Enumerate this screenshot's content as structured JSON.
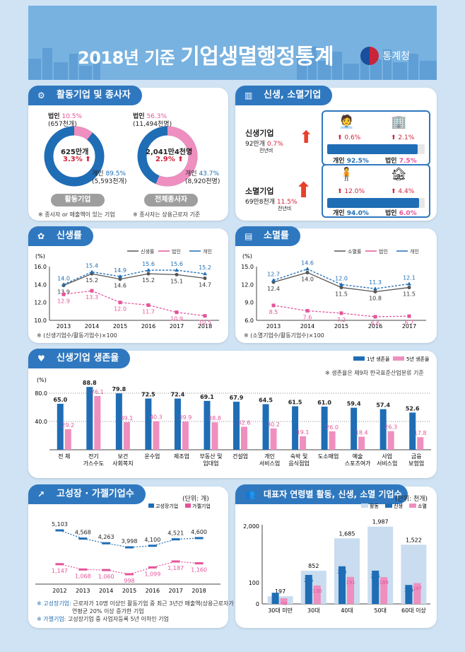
{
  "header": {
    "title_prefix": "2018년 기준",
    "title_main": "기업생멸행정통계",
    "agency": "통계청"
  },
  "active": {
    "title": "활동기업 및 종사자",
    "donut1": {
      "corp_label": "법인",
      "corp_pct": "10.5%",
      "corp_count": "(657천개)",
      "center_value": "625만개",
      "center_change": "3.3%",
      "indiv_label": "개인",
      "indiv_pct": "89.5%",
      "indiv_count": "(5,593천개)",
      "pill": "활동기업",
      "note": "※ 종사자 or 매출액이 있는 기업",
      "corp_share": 0.105
    },
    "donut2": {
      "corp_label": "법인",
      "corp_pct": "56.3%",
      "corp_count": "(11,494천명)",
      "center_value": "2,041만4천명",
      "center_change": "2.9%",
      "indiv_label": "개인",
      "indiv_pct": "43.7%",
      "indiv_count": "(8,920천명)",
      "pill": "전체종사자",
      "note": "※ 종사자는 상용근로자 기준",
      "corp_share": 0.563
    }
  },
  "newclose": {
    "title": "신생, 소멸기업",
    "new": {
      "label": "신생기업",
      "value": "92만개",
      "change": "0.7%",
      "sub": "전년비",
      "indiv_change": "0.6%",
      "corp_change": "2.1%",
      "indiv_label": "개인",
      "indiv_share": "92.5%",
      "corp_label": "법인",
      "corp_share": "7.5%",
      "indiv_frac": 0.925
    },
    "closed": {
      "label": "소멸기업",
      "value": "69만8천개",
      "change": "11.5%",
      "sub": "전년비",
      "indiv_change": "12.0%",
      "corp_change": "4.4%",
      "indiv_label": "개인",
      "indiv_share": "94.0%",
      "corp_label": "법인",
      "corp_share": "6.0%",
      "indiv_frac": 0.94
    }
  },
  "birth_rate": {
    "title": "신생률",
    "unit": "(%)",
    "note": "※ (신생기업수/활동기업수)×100",
    "chart_data": {
      "type": "line",
      "x": [
        "2013",
        "2014",
        "2015",
        "2016",
        "2017",
        "2018"
      ],
      "ylim": [
        10.0,
        16.0
      ],
      "yticks": [
        "10.0",
        "12.0",
        "14.0",
        "16.0"
      ],
      "series": [
        {
          "name": "신생률",
          "values": [
            13.9,
            15.2,
            14.6,
            15.2,
            15.1,
            14.7
          ],
          "color": "#555555"
        },
        {
          "name": "법인",
          "values": [
            12.9,
            13.3,
            12.0,
            11.7,
            10.9,
            10.5
          ],
          "color": "#e3559a"
        },
        {
          "name": "개인",
          "values": [
            14.0,
            15.4,
            14.9,
            15.6,
            15.6,
            15.2
          ],
          "color": "#1f6db5"
        }
      ]
    }
  },
  "death_rate": {
    "title": "소멸률",
    "unit": "(%)",
    "note": "※ (소멸기업수/활동기업수)×100",
    "chart_data": {
      "type": "line",
      "x": [
        "2013",
        "2014",
        "2015",
        "2016",
        "2017"
      ],
      "ylim": [
        6.0,
        15.0
      ],
      "yticks": [
        "6.0",
        "9.0",
        "12.0",
        "15.0"
      ],
      "series": [
        {
          "name": "소멸률",
          "values": [
            12.4,
            14.0,
            11.5,
            10.8,
            11.5
          ],
          "color": "#555555"
        },
        {
          "name": "법인",
          "values": [
            8.5,
            7.6,
            7.2,
            6.6,
            6.7
          ],
          "color": "#e3559a"
        },
        {
          "name": "개인",
          "values": [
            12.7,
            14.6,
            12.0,
            11.3,
            12.1
          ],
          "color": "#1f6db5"
        }
      ]
    }
  },
  "survival": {
    "title": "신생기업 생존율",
    "unit": "(%)",
    "note": "※ 생존율은 제9차 한국표준산업분류 기준",
    "chart_data": {
      "type": "bar",
      "categories": [
        "전 체",
        "전기\n가스수도",
        "보건\n사회복지",
        "운수업",
        "제조업",
        "부동산 및\n임대업",
        "건설업",
        "개인\n서비스업",
        "숙박 및\n음식점업",
        "도소매업",
        "예술\n스포츠여가",
        "사업\n서비스업",
        "금융\n보험업"
      ],
      "ylim": [
        0,
        90
      ],
      "yticks": [
        "40.0",
        "80.0"
      ],
      "series": [
        {
          "name": "1년 생존율",
          "values": [
            65.0,
            88.8,
            79.8,
            72.5,
            72.4,
            69.1,
            67.9,
            64.5,
            61.5,
            61.0,
            59.4,
            57.4,
            52.6
          ],
          "color": "#1f6db5"
        },
        {
          "name": "5년 생존율",
          "values": [
            29.2,
            76.1,
            39.1,
            40.3,
            39.9,
            38.8,
            32.6,
            30.2,
            19.1,
            26.0,
            18.4,
            26.3,
            17.8
          ],
          "color": "#ee8fbf"
        }
      ]
    }
  },
  "growth": {
    "title": "고성장 · 가젤기업수",
    "unit": "(단위: 개)",
    "note1_label": "※ 고성장기업:",
    "note1": "근로자가 10명 이상인 활동기업 중 최근 3년간 매출액(상용근로자가",
    "note1b": "연평균 20% 이상 증가한 기업",
    "note2_label": "※ 가젤기업:",
    "note2": "고성장기업 중 사업자등록 5년 이하인 기업",
    "chart_data": {
      "type": "line",
      "x": [
        "2012",
        "2013",
        "2014",
        "2015",
        "2016",
        "2017",
        "2018"
      ],
      "series": [
        {
          "name": "고성장기업",
          "values": [
            5103,
            4568,
            4263,
            3998,
            4100,
            4521,
            4600
          ],
          "labels": [
            "5,103",
            "4,568",
            "4,263",
            "3,998",
            "4,100",
            "4,521",
            "4,600"
          ],
          "color": "#1f6db5"
        },
        {
          "name": "가젤기업",
          "values": [
            1147,
            1068,
            1060,
            998,
            1099,
            1187,
            1160
          ],
          "labels": [
            "1,147",
            "1,068",
            "1,060",
            "998",
            "1,099",
            "1,187",
            "1,160"
          ],
          "color": "#e3559a"
        }
      ]
    }
  },
  "age": {
    "title": "대표자 연령별 활동, 신생, 소멸 기업수",
    "unit": "(단위: 천개)",
    "chart_data": {
      "type": "bar",
      "categories": [
        "30대 미만",
        "30대",
        "40대",
        "50대",
        "60대 이상"
      ],
      "yticks": [
        "0",
        "100",
        "2,000"
      ],
      "series": [
        {
          "name": "활동",
          "values": [
            197,
            852,
            1685,
            1987,
            1522
          ],
          "labels": [
            "197",
            "852",
            "1,685",
            "1,987",
            "1,522"
          ],
          "color": "#c9dcf0"
        },
        {
          "name": "신생",
          "values": [
            79,
            205,
            266,
            235,
            134
          ],
          "color": "#1f6db5"
        },
        {
          "name": "소멸",
          "values": [
            40,
            130,
            191,
            189,
            147
          ],
          "color": "#ee8fbf"
        }
      ]
    }
  }
}
